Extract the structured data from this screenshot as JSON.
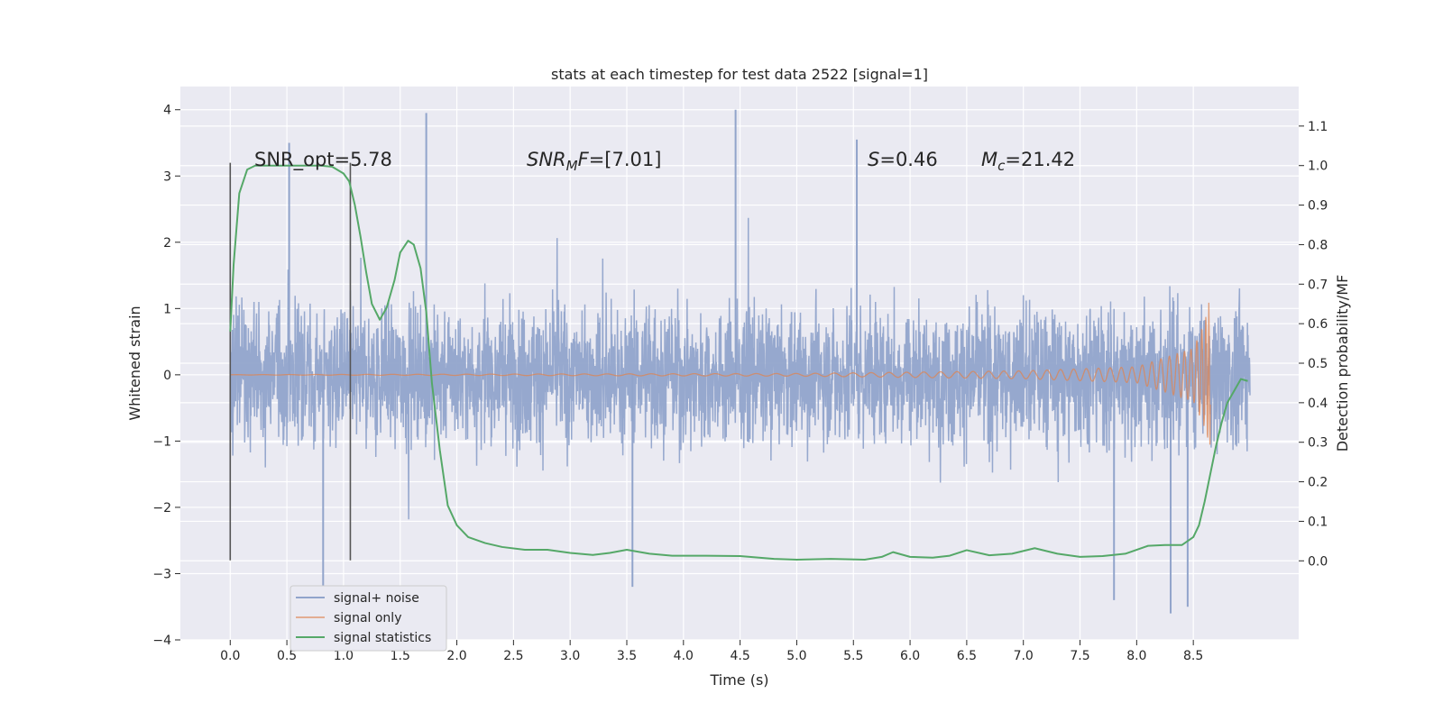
{
  "chart_data": {
    "type": "line",
    "title": "stats at each timestep for test data 2522 [signal=1]",
    "xlabel": "Time (s)",
    "ylabel_left": "Whitened strain",
    "ylabel_right": "Detection probability/MF",
    "xlim": [
      -0.44,
      9.43
    ],
    "ylim_left": [
      -4.0,
      4.35
    ],
    "ylim_right": [
      -0.2,
      1.2
    ],
    "xticks": [
      0.0,
      0.5,
      1.0,
      1.5,
      2.0,
      2.5,
      3.0,
      3.5,
      4.0,
      4.5,
      5.0,
      5.5,
      6.0,
      6.5,
      7.0,
      7.5,
      8.0,
      8.5
    ],
    "xtick_labels": [
      "0.0",
      "0.5",
      "1.0",
      "1.5",
      "2.0",
      "2.5",
      "3.0",
      "3.5",
      "4.0",
      "4.5",
      "5.0",
      "5.5",
      "6.0",
      "6.5",
      "7.0",
      "7.5",
      "8.0",
      "8.5"
    ],
    "yticks_left": [
      -4,
      -3,
      -2,
      -1,
      0,
      1,
      2,
      3,
      4
    ],
    "ytick_labels_left": [
      "−4",
      "−3",
      "−2",
      "−1",
      "0",
      "1",
      "2",
      "3",
      "4"
    ],
    "yticks_right": [
      0.0,
      0.1,
      0.2,
      0.3,
      0.4,
      0.5,
      0.6,
      0.7,
      0.8,
      0.9,
      1.0,
      1.1
    ],
    "ytick_labels_right": [
      "0.0",
      "0.1",
      "0.2",
      "0.3",
      "0.4",
      "0.5",
      "0.6",
      "0.7",
      "0.8",
      "0.9",
      "1.0",
      "1.1"
    ],
    "grid": true,
    "legend_position": "lower-left",
    "series": [
      {
        "name": "signal+ noise",
        "color": "#91a4cb",
        "axis": "left",
        "description": "noisy whitened strain, roughly within ±1.5 with spikes up to ~4",
        "x_range": [
          0.0,
          9.0
        ],
        "peaks": [
          {
            "x": 0.52,
            "y": 3.5
          },
          {
            "x": 1.73,
            "y": 3.95
          },
          {
            "x": 4.46,
            "y": 4.0
          },
          {
            "x": 5.53,
            "y": 3.55
          },
          {
            "x": 0.82,
            "y": -3.25
          },
          {
            "x": 3.55,
            "y": -3.2
          },
          {
            "x": 8.3,
            "y": -3.6
          },
          {
            "x": 8.45,
            "y": -3.5
          },
          {
            "x": 7.8,
            "y": -3.4
          }
        ]
      },
      {
        "name": "signal only",
        "color": "#dd8452",
        "axis": "left",
        "description": "chirp signal, near zero growing to amplitude ~1.2 before merger at ~8.65 s",
        "x_range": [
          0.0,
          8.65
        ],
        "amplitude_points": [
          [
            0.0,
            0.002
          ],
          [
            5.0,
            0.02
          ],
          [
            7.0,
            0.06
          ],
          [
            8.0,
            0.12
          ],
          [
            8.5,
            0.4
          ],
          [
            8.6,
            0.8
          ],
          [
            8.65,
            1.2
          ]
        ]
      },
      {
        "name": "signal statistics",
        "color": "#55a868",
        "axis": "right",
        "points": [
          [
            0.0,
            0.58
          ],
          [
            0.03,
            0.75
          ],
          [
            0.08,
            0.93
          ],
          [
            0.15,
            0.99
          ],
          [
            0.22,
            1.0
          ],
          [
            0.4,
            1.0
          ],
          [
            0.6,
            1.0
          ],
          [
            0.8,
            1.0
          ],
          [
            0.9,
            0.997
          ],
          [
            1.0,
            0.98
          ],
          [
            1.05,
            0.96
          ],
          [
            1.1,
            0.9
          ],
          [
            1.15,
            0.82
          ],
          [
            1.2,
            0.73
          ],
          [
            1.25,
            0.65
          ],
          [
            1.32,
            0.61
          ],
          [
            1.38,
            0.64
          ],
          [
            1.45,
            0.71
          ],
          [
            1.5,
            0.78
          ],
          [
            1.57,
            0.81
          ],
          [
            1.62,
            0.8
          ],
          [
            1.68,
            0.74
          ],
          [
            1.73,
            0.63
          ],
          [
            1.78,
            0.45
          ],
          [
            1.85,
            0.28
          ],
          [
            1.92,
            0.14
          ],
          [
            2.0,
            0.09
          ],
          [
            2.1,
            0.06
          ],
          [
            2.25,
            0.045
          ],
          [
            2.4,
            0.035
          ],
          [
            2.6,
            0.028
          ],
          [
            2.8,
            0.028
          ],
          [
            3.0,
            0.02
          ],
          [
            3.2,
            0.015
          ],
          [
            3.35,
            0.02
          ],
          [
            3.5,
            0.028
          ],
          [
            3.7,
            0.018
          ],
          [
            3.9,
            0.013
          ],
          [
            4.2,
            0.013
          ],
          [
            4.5,
            0.012
          ],
          [
            4.8,
            0.005
          ],
          [
            5.0,
            0.003
          ],
          [
            5.3,
            0.005
          ],
          [
            5.6,
            0.003
          ],
          [
            5.75,
            0.01
          ],
          [
            5.85,
            0.022
          ],
          [
            6.0,
            0.01
          ],
          [
            6.2,
            0.008
          ],
          [
            6.35,
            0.013
          ],
          [
            6.5,
            0.027
          ],
          [
            6.7,
            0.014
          ],
          [
            6.9,
            0.018
          ],
          [
            7.1,
            0.032
          ],
          [
            7.3,
            0.018
          ],
          [
            7.5,
            0.01
          ],
          [
            7.7,
            0.012
          ],
          [
            7.9,
            0.018
          ],
          [
            8.1,
            0.038
          ],
          [
            8.25,
            0.04
          ],
          [
            8.4,
            0.04
          ],
          [
            8.5,
            0.06
          ],
          [
            8.55,
            0.09
          ],
          [
            8.6,
            0.15
          ],
          [
            8.65,
            0.22
          ],
          [
            8.7,
            0.29
          ],
          [
            8.75,
            0.35
          ],
          [
            8.8,
            0.4
          ],
          [
            8.86,
            0.43
          ],
          [
            8.92,
            0.46
          ],
          [
            8.98,
            0.455
          ]
        ]
      }
    ],
    "vertical_lines": [
      {
        "x": 0.0,
        "y_range": [
          -2.8,
          3.2
        ],
        "color": "#555555"
      },
      {
        "x": 1.06,
        "y_range": [
          -2.8,
          3.2
        ],
        "color": "#555555"
      }
    ],
    "annotations": [
      {
        "text": "SNR_opt=5.78",
        "x": 0.2,
        "y": 3.3
      },
      {
        "text": "SNR_MF=[7.01]",
        "x": 2.6,
        "y": 3.3
      },
      {
        "text": "S=0.46",
        "x": 5.6,
        "y": 3.3
      },
      {
        "text": "M_c=21.42",
        "x": 6.6,
        "y": 3.3
      }
    ],
    "annotation_display": {
      "snr_opt": "SNR_opt=5.78",
      "snr_mf_base": "SNR",
      "snr_mf_sub": "M",
      "snr_mf_rest": "F=[7.01]",
      "s_base": "S",
      "s_rest": "=0.46",
      "mc_base": "M",
      "mc_sub": "c",
      "mc_rest": "=21.42"
    }
  }
}
